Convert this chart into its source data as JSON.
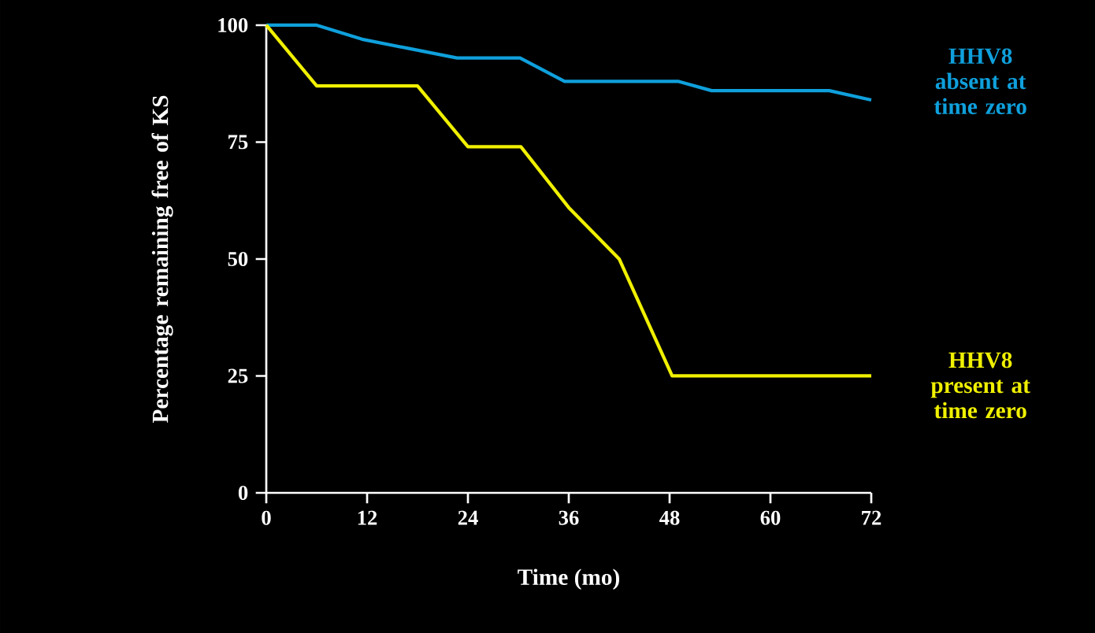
{
  "chart_data": {
    "type": "line",
    "xlabel": "Time (mo)",
    "ylabel": "Percentage remaining free of KS",
    "xlim": [
      0,
      72
    ],
    "ylim": [
      0,
      100
    ],
    "xticks": [
      0,
      12,
      24,
      36,
      48,
      60,
      72
    ],
    "yticks": [
      0,
      25,
      50,
      75,
      100
    ],
    "grid": false,
    "series": [
      {
        "name": "HHV8 absent at time zero",
        "color": "#0fa0dc",
        "x": [
          0,
          6,
          11.4,
          17,
          22.7,
          30.2,
          35.5,
          49,
          53,
          67,
          72
        ],
        "values": [
          100,
          100,
          97,
          95,
          93,
          93,
          88,
          88,
          86,
          86,
          84
        ]
      },
      {
        "name": "HHV8 present at time zero",
        "color": "#f0f000",
        "x": [
          0,
          6,
          18,
          24,
          30.3,
          36,
          42,
          48.3,
          72
        ],
        "values": [
          100,
          87,
          87,
          74,
          74,
          61,
          50,
          25,
          25
        ]
      }
    ]
  }
}
